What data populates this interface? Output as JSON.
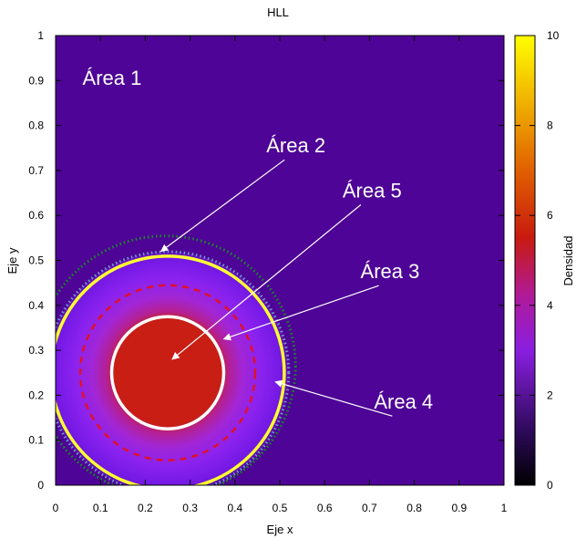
{
  "chart_data": {
    "type": "heatmap",
    "title": "HLL",
    "xlabel": "Eje x",
    "ylabel": "Eje y",
    "xlim": [
      0,
      1
    ],
    "ylim": [
      0,
      1
    ],
    "xticks": [
      "0",
      "0.1",
      "0.2",
      "0.3",
      "0.4",
      "0.5",
      "0.6",
      "0.7",
      "0.8",
      "0.9",
      "1"
    ],
    "yticks": [
      "0",
      "0.1",
      "0.2",
      "0.3",
      "0.4",
      "0.5",
      "0.6",
      "0.7",
      "0.8",
      "0.9",
      "1"
    ],
    "colorbar": {
      "label": "Densidad",
      "range": [
        0,
        10
      ],
      "ticks": [
        "0",
        "2",
        "4",
        "6",
        "8",
        "10"
      ]
    },
    "field": {
      "center": [
        0.25,
        0.25
      ],
      "background_density": 1,
      "blast_outer_radius": 0.27,
      "core_radius": 0.125,
      "core_density": 5
    },
    "annotations": [
      {
        "label": "Área 1",
        "text_at": [
          0.06,
          0.89
        ]
      },
      {
        "label": "Área 2",
        "text_at": [
          0.47,
          0.74
        ],
        "arrow_to": [
          0.235,
          0.52
        ]
      },
      {
        "label": "Área 5",
        "text_at": [
          0.64,
          0.64
        ],
        "arrow_to": [
          0.26,
          0.28
        ]
      },
      {
        "label": "Área 3",
        "text_at": [
          0.68,
          0.46
        ],
        "arrow_to": [
          0.375,
          0.325
        ]
      },
      {
        "label": "Área 4",
        "text_at": [
          0.71,
          0.17
        ],
        "arrow_to": [
          0.49,
          0.23
        ]
      }
    ],
    "contours": [
      {
        "name": "green-dotted",
        "center": [
          0.245,
          0.265
        ],
        "radius": 0.29,
        "color": "#1a8a2a",
        "style": "dotted"
      },
      {
        "name": "blue-dotted",
        "center": [
          0.25,
          0.25
        ],
        "radius": 0.27,
        "color": "#6aa0c8",
        "style": "dotted"
      },
      {
        "name": "yellow-solid",
        "center": [
          0.25,
          0.25
        ],
        "radius": 0.26,
        "color": "#ffff33",
        "style": "solid"
      },
      {
        "name": "red-dashed",
        "center": [
          0.25,
          0.25
        ],
        "radius": 0.195,
        "color": "#e0102a",
        "style": "dashed"
      },
      {
        "name": "white-solid",
        "center": [
          0.25,
          0.25
        ],
        "radius": 0.125,
        "color": "#ffffff",
        "style": "solid"
      }
    ],
    "grid": false,
    "legend": "none"
  }
}
